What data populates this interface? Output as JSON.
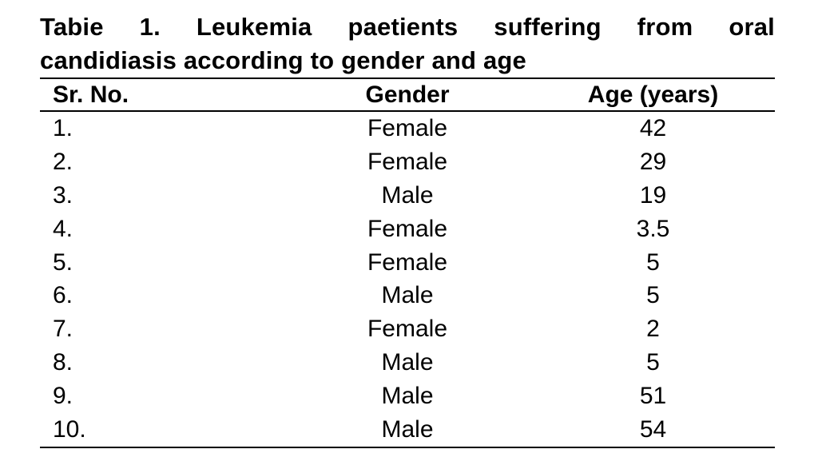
{
  "page": {
    "background_color": "#ffffff",
    "text_color": "#000000"
  },
  "title": {
    "full": "Tabie 1. Leukemia paetients suffering from oral candidiasis according to gender and age",
    "line1": "Tabie 1. Leukemia paetients suffering from oral",
    "line2": "candidiasis according to gender and age"
  },
  "table": {
    "columns": [
      {
        "key": "sr_no",
        "label": "Sr. No."
      },
      {
        "key": "gender",
        "label": "Gender"
      },
      {
        "key": "age",
        "label": "Age (years)"
      }
    ],
    "rows": [
      {
        "sr_no": "1.",
        "gender": "Female",
        "age": "42"
      },
      {
        "sr_no": "2.",
        "gender": "Female",
        "age": "29"
      },
      {
        "sr_no": "3.",
        "gender": "Male",
        "age": "19"
      },
      {
        "sr_no": "4.",
        "gender": "Female",
        "age": "3.5"
      },
      {
        "sr_no": "5.",
        "gender": "Female",
        "age": "5"
      },
      {
        "sr_no": "6.",
        "gender": "Male",
        "age": "5"
      },
      {
        "sr_no": "7.",
        "gender": "Female",
        "age": "2"
      },
      {
        "sr_no": "8.",
        "gender": "Male",
        "age": "5"
      },
      {
        "sr_no": "9.",
        "gender": "Male",
        "age": "51"
      },
      {
        "sr_no": "10.",
        "gender": "Male",
        "age": "54"
      }
    ]
  }
}
